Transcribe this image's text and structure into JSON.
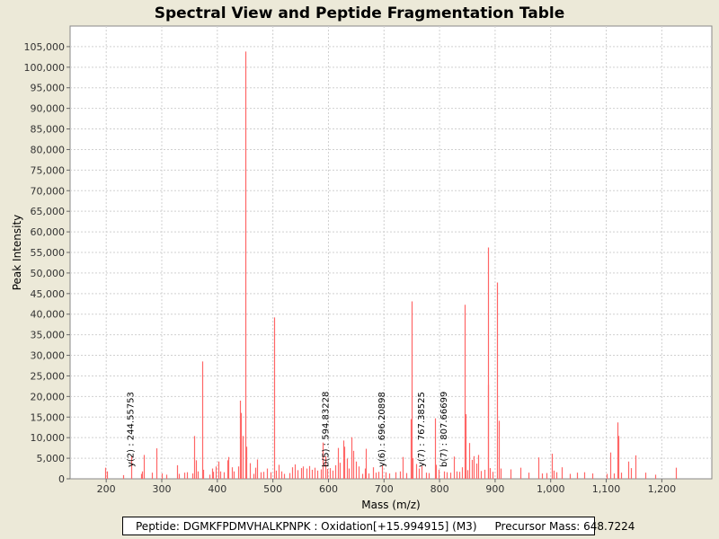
{
  "chart_data": {
    "type": "bar",
    "title": "Spectral View and Peptide Fragmentation Table",
    "xlabel": "Mass (m/z)",
    "ylabel": "Peak Intensity",
    "xlim": [
      135,
      1290
    ],
    "ylim": [
      0,
      110000
    ],
    "x_ticks": [
      200,
      300,
      400,
      500,
      600,
      700,
      800,
      900,
      1000,
      1100,
      1200
    ],
    "x_tick_labels": [
      "200",
      "300",
      "400",
      "500",
      "600",
      "700",
      "800",
      "900",
      "1,000",
      "1,100",
      "1,200"
    ],
    "y_ticks": [
      0,
      5000,
      10000,
      15000,
      20000,
      25000,
      30000,
      35000,
      40000,
      45000,
      50000,
      55000,
      60000,
      65000,
      70000,
      75000,
      80000,
      85000,
      90000,
      95000,
      100000,
      105000
    ],
    "y_tick_labels": [
      "0",
      "5,000",
      "10,000",
      "15,000",
      "20,000",
      "25,000",
      "30,000",
      "35,000",
      "40,000",
      "45,000",
      "50,000",
      "55,000",
      "60,000",
      "65,000",
      "70,000",
      "75,000",
      "80,000",
      "85,000",
      "90,000",
      "95,000",
      "100,000",
      "105,000"
    ],
    "grid": true,
    "series": [
      {
        "color": "#ff6666",
        "peaks": [
          [
            198,
            2700
          ],
          [
            201,
            1800
          ],
          [
            230,
            900
          ],
          [
            244.56,
            5500
          ],
          [
            262,
            1200
          ],
          [
            265,
            1800
          ],
          [
            268,
            5800
          ],
          [
            283,
            1500
          ],
          [
            291,
            7400
          ],
          [
            300,
            1300
          ],
          [
            308,
            1000
          ],
          [
            327,
            3300
          ],
          [
            330,
            1200
          ],
          [
            340,
            1500
          ],
          [
            345,
            1600
          ],
          [
            355,
            1300
          ],
          [
            358,
            10400
          ],
          [
            362,
            4500
          ],
          [
            364,
            1800
          ],
          [
            372,
            28500
          ],
          [
            375,
            2200
          ],
          [
            385,
            1000
          ],
          [
            390,
            2500
          ],
          [
            393,
            1700
          ],
          [
            397,
            3000
          ],
          [
            402,
            4200
          ],
          [
            405,
            1800
          ],
          [
            412,
            1600
          ],
          [
            418,
            4500
          ],
          [
            420,
            5300
          ],
          [
            426,
            2800
          ],
          [
            430,
            1800
          ],
          [
            437,
            3000
          ],
          [
            441,
            19000
          ],
          [
            443,
            16000
          ],
          [
            446,
            10400
          ],
          [
            450,
            103800
          ],
          [
            452,
            7800
          ],
          [
            458,
            3800
          ],
          [
            465,
            1200
          ],
          [
            468,
            2700
          ],
          [
            472,
            4700
          ],
          [
            478,
            1600
          ],
          [
            482,
            1700
          ],
          [
            490,
            2500
          ],
          [
            495,
            1600
          ],
          [
            502,
            39200
          ],
          [
            505,
            2000
          ],
          [
            510,
            3400
          ],
          [
            515,
            1800
          ],
          [
            520,
            1200
          ],
          [
            530,
            1400
          ],
          [
            535,
            2800
          ],
          [
            540,
            3500
          ],
          [
            545,
            2100
          ],
          [
            550,
            2600
          ],
          [
            554,
            3000
          ],
          [
            560,
            2500
          ],
          [
            566,
            3100
          ],
          [
            570,
            2200
          ],
          [
            575,
            2700
          ],
          [
            580,
            2000
          ],
          [
            586,
            2300
          ],
          [
            589,
            8800
          ],
          [
            594.83,
            5500
          ],
          [
            598,
            2400
          ],
          [
            603,
            2600
          ],
          [
            608,
            2000
          ],
          [
            613,
            3300
          ],
          [
            617,
            7500
          ],
          [
            621,
            3900
          ],
          [
            626,
            9300
          ],
          [
            629,
            7800
          ],
          [
            633,
            4900
          ],
          [
            637,
            2500
          ],
          [
            641,
            10100
          ],
          [
            645,
            6800
          ],
          [
            650,
            4200
          ],
          [
            655,
            3000
          ],
          [
            660,
            1200
          ],
          [
            665,
            2500
          ],
          [
            668,
            7300
          ],
          [
            672,
            1300
          ],
          [
            680,
            2800
          ],
          [
            685,
            1500
          ],
          [
            690,
            1700
          ],
          [
            696.21,
            3200
          ],
          [
            702,
            1600
          ],
          [
            710,
            1300
          ],
          [
            720,
            1600
          ],
          [
            728,
            1800
          ],
          [
            733,
            5300
          ],
          [
            740,
            1400
          ],
          [
            748,
            14500
          ],
          [
            750,
            43100
          ],
          [
            752,
            5000
          ],
          [
            758,
            3600
          ],
          [
            762,
            2500
          ],
          [
            767.39,
            3100
          ],
          [
            775,
            1500
          ],
          [
            780,
            1400
          ],
          [
            791,
            14700
          ],
          [
            794,
            3400
          ],
          [
            799,
            2200
          ],
          [
            807.67,
            1800
          ],
          [
            812,
            1600
          ],
          [
            820,
            1500
          ],
          [
            826,
            5400
          ],
          [
            830,
            1800
          ],
          [
            836,
            1700
          ],
          [
            841,
            2800
          ],
          [
            845,
            42300
          ],
          [
            846,
            15700
          ],
          [
            850,
            2100
          ],
          [
            854,
            8700
          ],
          [
            858,
            4600
          ],
          [
            862,
            5500
          ],
          [
            866,
            3700
          ],
          [
            869,
            5800
          ],
          [
            874,
            1900
          ],
          [
            880,
            2200
          ],
          [
            887,
            56200
          ],
          [
            888,
            22800
          ],
          [
            891,
            2600
          ],
          [
            895,
            1700
          ],
          [
            904,
            47700
          ],
          [
            906,
            14100
          ],
          [
            910,
            2500
          ],
          [
            928,
            2300
          ],
          [
            945,
            2700
          ],
          [
            960,
            1500
          ],
          [
            978,
            5200
          ],
          [
            985,
            1300
          ],
          [
            993,
            1400
          ],
          [
            1002,
            6100
          ],
          [
            1005,
            2000
          ],
          [
            1010,
            1600
          ],
          [
            1020,
            2800
          ],
          [
            1035,
            1200
          ],
          [
            1047,
            1500
          ],
          [
            1060,
            1600
          ],
          [
            1075,
            1300
          ],
          [
            1100,
            1200
          ],
          [
            1108,
            6400
          ],
          [
            1113,
            1300
          ],
          [
            1120,
            13700
          ],
          [
            1122,
            10400
          ],
          [
            1126,
            1500
          ],
          [
            1140,
            4200
          ],
          [
            1145,
            2600
          ],
          [
            1152,
            5700
          ],
          [
            1170,
            1500
          ],
          [
            1188,
            1000
          ],
          [
            1225,
            2700
          ]
        ]
      }
    ],
    "annotations": [
      {
        "x": 244.56,
        "text": "y(2) : 244.55753"
      },
      {
        "x": 594.83,
        "text": "b(5) : 594.83228"
      },
      {
        "x": 696.21,
        "text": "y(6) : 696.20898"
      },
      {
        "x": 767.39,
        "text": "y(7) : 767.38525"
      },
      {
        "x": 807.67,
        "text": "b(7) : 807.66699"
      }
    ]
  },
  "legend": {
    "peptide_text": "Peptide: DGMKFPDMVHALKPNPK : Oxidation[+15.994915] (M3)",
    "precursor_text": "Precursor Mass: 648.7224"
  }
}
